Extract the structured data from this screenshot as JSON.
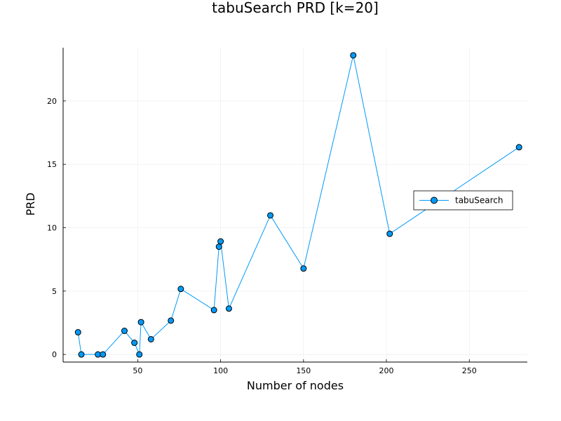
{
  "chart_data": {
    "type": "line",
    "title": "tabuSearch PRD [k=20]",
    "xlabel": "Number of nodes",
    "ylabel": "PRD",
    "xlim": [
      5,
      285
    ],
    "ylim": [
      -0.6,
      24.2
    ],
    "xticks": [
      50,
      100,
      150,
      200,
      250
    ],
    "yticks": [
      0,
      5,
      10,
      15,
      20
    ],
    "grid": true,
    "legend_position": "right",
    "series": [
      {
        "name": "tabuSearch",
        "color": "#009af9",
        "marker": "circle",
        "x": [
          14,
          16,
          26,
          29,
          42,
          48,
          51,
          52,
          58,
          70,
          76,
          96,
          99,
          100,
          105,
          130,
          150,
          180,
          202,
          280
        ],
        "y": [
          1.75,
          0.0,
          0.0,
          0.0,
          1.86,
          0.92,
          0.0,
          2.55,
          1.2,
          2.67,
          5.17,
          3.5,
          8.5,
          8.92,
          3.62,
          10.97,
          6.78,
          23.6,
          9.52,
          16.35
        ]
      }
    ]
  }
}
